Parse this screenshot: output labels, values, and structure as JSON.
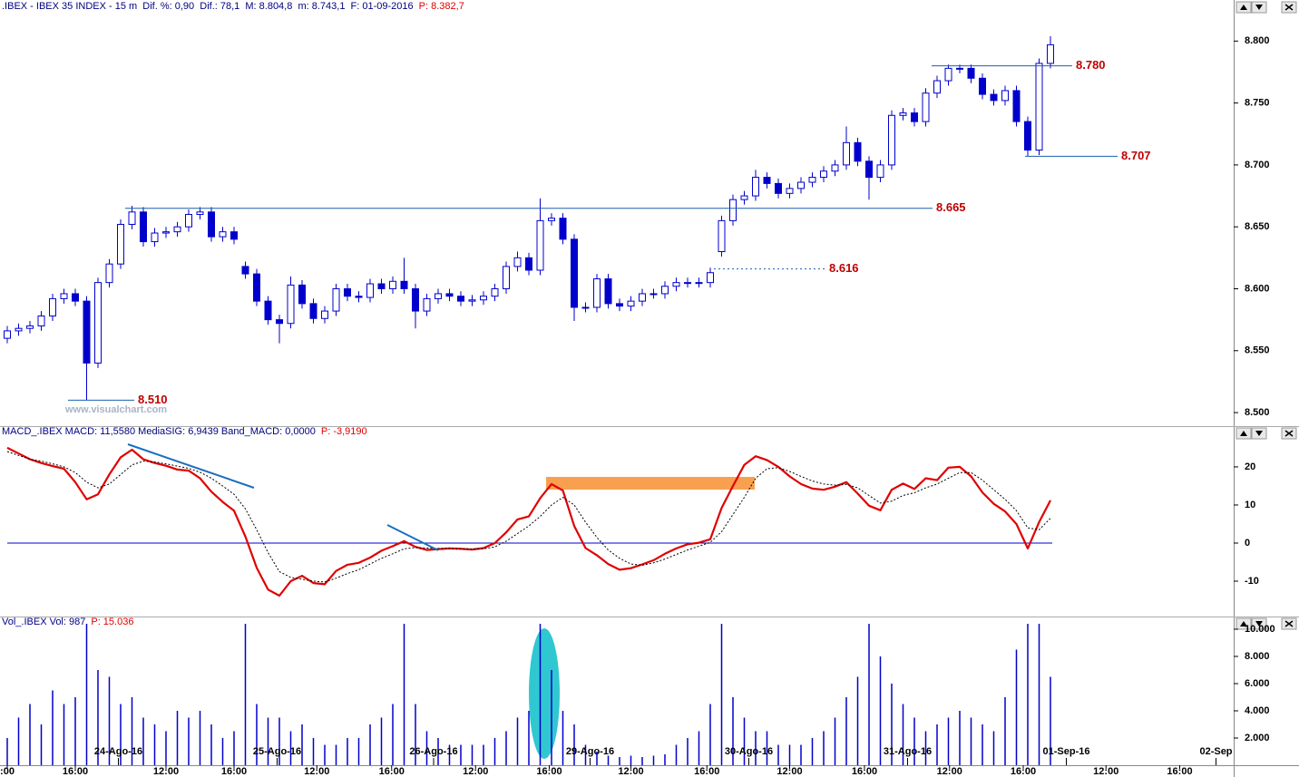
{
  "chart_data": [
    {
      "type": "candlestick",
      "header": ".IBEX - IBEX 35 INDEX - 15 m  Dif. %: 0,90  Dif.: 78,1  M: 8.804,8  m: 8.743,1  F: 01-09-2016",
      "header_value": "P: 8.382,7",
      "watermark": "www.visualchart.com",
      "up_color": "#ffffff",
      "down_color": "#0000cc",
      "edge_color": "#0000cc",
      "xlim": [
        -0.64,
        108.16
      ],
      "ylim": [
        8.492,
        8.82
      ],
      "yticks": [
        {
          "value": 8.5,
          "label": "8.500"
        },
        {
          "value": 8.55,
          "label": "8.550"
        },
        {
          "value": 8.6,
          "label": "8.600"
        },
        {
          "value": 8.65,
          "label": "8.650"
        },
        {
          "value": 8.7,
          "label": "8.700"
        },
        {
          "value": 8.75,
          "label": "8.750"
        },
        {
          "value": 8.8,
          "label": "8.800"
        }
      ],
      "levels": [
        {
          "value": 8.51,
          "label": "8.510"
        },
        {
          "value": 8.665,
          "label": "8.665"
        },
        {
          "value": 8.616,
          "label": "8.616",
          "style": "dotted"
        },
        {
          "value": 8.707,
          "label": "8.707"
        },
        {
          "value": 8.78,
          "label": "8.780"
        }
      ],
      "open": [
        8.56,
        8.566,
        8.568,
        8.57,
        8.578,
        8.592,
        8.596,
        8.59,
        8.54,
        8.605,
        8.62,
        8.652,
        8.662,
        8.638,
        8.645,
        8.646,
        8.65,
        8.66,
        8.662,
        8.642,
        8.646,
        8.618,
        8.612,
        8.59,
        8.575,
        8.572,
        8.603,
        8.588,
        8.576,
        8.582,
        8.6,
        8.594,
        8.593,
        8.604,
        8.6,
        8.606,
        8.6,
        8.582,
        8.592,
        8.596,
        8.594,
        8.59,
        8.591,
        8.594,
        8.6,
        8.618,
        8.625,
        8.615,
        8.655,
        8.657,
        8.64,
        8.585,
        8.585,
        8.608,
        8.588,
        8.586,
        8.59,
        8.596,
        8.596,
        8.602,
        8.605,
        8.605,
        8.605,
        8.63,
        8.655,
        8.672,
        8.675,
        8.69,
        8.685,
        8.677,
        8.681,
        8.686,
        8.69,
        8.695,
        8.7,
        8.718,
        8.703,
        8.69,
        8.7,
        8.74,
        8.742,
        8.735,
        8.758,
        8.768,
        8.778,
        8.778,
        8.77,
        8.757,
        8.752,
        8.76,
        8.735,
        8.712,
        8.782
      ],
      "high": [
        8.57,
        8.572,
        8.574,
        8.582,
        8.596,
        8.6,
        8.6,
        8.594,
        8.609,
        8.624,
        8.656,
        8.667,
        8.666,
        8.649,
        8.65,
        8.654,
        8.664,
        8.666,
        8.666,
        8.65,
        8.65,
        8.622,
        8.616,
        8.594,
        8.579,
        8.61,
        8.607,
        8.592,
        8.586,
        8.604,
        8.604,
        8.598,
        8.608,
        8.608,
        8.61,
        8.625,
        8.604,
        8.596,
        8.6,
        8.6,
        8.598,
        8.595,
        8.598,
        8.604,
        8.622,
        8.63,
        8.629,
        8.673,
        8.661,
        8.661,
        8.644,
        8.589,
        8.612,
        8.612,
        8.592,
        8.594,
        8.6,
        8.6,
        8.606,
        8.609,
        8.609,
        8.609,
        8.617,
        8.659,
        8.676,
        8.679,
        8.696,
        8.694,
        8.689,
        8.685,
        8.69,
        8.694,
        8.699,
        8.704,
        8.731,
        8.722,
        8.707,
        8.704,
        8.744,
        8.746,
        8.746,
        8.762,
        8.772,
        8.781,
        8.781,
        8.781,
        8.774,
        8.761,
        8.764,
        8.764,
        8.739,
        8.786,
        8.804
      ],
      "low": [
        8.556,
        8.562,
        8.564,
        8.566,
        8.574,
        8.588,
        8.586,
        8.51,
        8.536,
        8.601,
        8.616,
        8.648,
        8.634,
        8.634,
        8.641,
        8.642,
        8.646,
        8.656,
        8.638,
        8.638,
        8.636,
        8.608,
        8.586,
        8.571,
        8.556,
        8.568,
        8.584,
        8.572,
        8.572,
        8.578,
        8.59,
        8.589,
        8.589,
        8.596,
        8.596,
        8.596,
        8.568,
        8.578,
        8.588,
        8.59,
        8.586,
        8.586,
        8.587,
        8.59,
        8.596,
        8.614,
        8.611,
        8.611,
        8.651,
        8.636,
        8.574,
        8.581,
        8.581,
        8.584,
        8.582,
        8.582,
        8.586,
        8.592,
        8.592,
        8.598,
        8.601,
        8.601,
        8.601,
        8.626,
        8.651,
        8.668,
        8.671,
        8.681,
        8.673,
        8.673,
        8.677,
        8.682,
        8.686,
        8.691,
        8.696,
        8.699,
        8.672,
        8.686,
        8.696,
        8.736,
        8.731,
        8.731,
        8.754,
        8.764,
        8.774,
        8.766,
        8.753,
        8.748,
        8.748,
        8.731,
        8.707,
        8.708,
        8.778
      ],
      "close": [
        8.566,
        8.568,
        8.57,
        8.578,
        8.592,
        8.596,
        8.59,
        8.54,
        8.605,
        8.62,
        8.652,
        8.662,
        8.638,
        8.645,
        8.646,
        8.65,
        8.66,
        8.662,
        8.642,
        8.646,
        8.64,
        8.612,
        8.59,
        8.575,
        8.572,
        8.603,
        8.588,
        8.576,
        8.582,
        8.6,
        8.594,
        8.593,
        8.604,
        8.6,
        8.606,
        8.6,
        8.582,
        8.592,
        8.596,
        8.594,
        8.59,
        8.591,
        8.594,
        8.6,
        8.618,
        8.625,
        8.615,
        8.655,
        8.657,
        8.64,
        8.585,
        8.585,
        8.608,
        8.588,
        8.586,
        8.59,
        8.596,
        8.596,
        8.602,
        8.605,
        8.605,
        8.605,
        8.613,
        8.655,
        8.672,
        8.675,
        8.69,
        8.685,
        8.677,
        8.681,
        8.686,
        8.69,
        8.695,
        8.7,
        8.718,
        8.703,
        8.69,
        8.7,
        8.74,
        8.742,
        8.735,
        8.758,
        8.768,
        8.778,
        8.778,
        8.77,
        8.757,
        8.752,
        8.76,
        8.735,
        8.712,
        8.782,
        8.797
      ]
    },
    {
      "type": "line",
      "header": "MACD_.IBEX MACD: 11,5580 MediaSIG: 6,9439 Band_MACD: 0,0000",
      "header_value": "P: -3,9190",
      "xlim": [
        -0.64,
        108.16
      ],
      "ylim": [
        -18.8,
        27.6
      ],
      "yticks": [
        -10,
        0,
        10,
        20
      ],
      "hline": 0,
      "hline_color": "#0000cc",
      "series": [
        {
          "color": "#e00000",
          "values": [
            25,
            23.5,
            22,
            21,
            20.2,
            19.5,
            16,
            11.5,
            12.8,
            18,
            22.5,
            24.5,
            22,
            21,
            20.3,
            19.3,
            19,
            17,
            13.5,
            10.8,
            8.5,
            1.7,
            -6.5,
            -12.2,
            -13.8,
            -10,
            -8.6,
            -10.5,
            -10.8,
            -7.3,
            -5.7,
            -5.2,
            -3.8,
            -2,
            -0.8,
            0.5,
            -1,
            -1.8,
            -1.6,
            -1.4,
            -1.5,
            -1.7,
            -1.3,
            0,
            2.8,
            6.2,
            7,
            11.8,
            15.5,
            13.8,
            4.5,
            -1.3,
            -3.2,
            -5.5,
            -7,
            -6.6,
            -5.6,
            -4.5,
            -2.8,
            -1.4,
            -0.3,
            0.1,
            1,
            9.2,
            15,
            20.5,
            22.8,
            21.8,
            20,
            17.5,
            15.5,
            14.3,
            14,
            14.8,
            16,
            13,
            9.8,
            8.6,
            14,
            15.6,
            14.2,
            17,
            16.5,
            19.8,
            20,
            17.5,
            13.3,
            10.3,
            8.3,
            5,
            -1.4,
            5.5,
            11.2
          ]
        },
        {
          "color": "#000000",
          "style": "dotted",
          "values": [
            24,
            23,
            22,
            21.5,
            20.8,
            20,
            18.5,
            16,
            14.5,
            15.5,
            18,
            20.5,
            21.5,
            21.3,
            20.8,
            20.2,
            19.6,
            18.6,
            17,
            15,
            12.8,
            9,
            3.5,
            -2.5,
            -7.5,
            -9,
            -9.5,
            -10,
            -10.2,
            -9.2,
            -8,
            -7,
            -5.5,
            -4,
            -2.8,
            -1.5,
            -1.2,
            -1.3,
            -1.4,
            -1.4,
            -1.5,
            -1.6,
            -1.5,
            -1,
            0.5,
            2.5,
            4.5,
            7,
            10,
            12,
            10,
            5.5,
            1.5,
            -1.8,
            -4,
            -5.5,
            -5.8,
            -5.2,
            -4.2,
            -3,
            -1.8,
            -0.8,
            0.2,
            3,
            7.5,
            12,
            17,
            19.5,
            19.8,
            18.8,
            17.5,
            16.3,
            15.5,
            15.2,
            15.4,
            14.5,
            12.5,
            10.5,
            11,
            12.5,
            13.2,
            14.5,
            15.5,
            17,
            18.5,
            18.5,
            16.5,
            14,
            11.5,
            8.5,
            4,
            3.5,
            6.5
          ]
        }
      ]
    },
    {
      "type": "bar",
      "header": "Vol_.IBEX Vol: 987",
      "header_value": "P: 15.036",
      "color": "#0000cc",
      "xlim": [
        -0.64,
        108.16
      ],
      "ylim": [
        0,
        10400
      ],
      "yticks": [
        {
          "value": 2000,
          "label": "2.000"
        },
        {
          "value": 4000,
          "label": "4.000"
        },
        {
          "value": 6000,
          "label": "6.000"
        },
        {
          "value": 8000,
          "label": "8.000"
        },
        {
          "value": 10000,
          "label": "10.000"
        }
      ],
      "values": [
        2000,
        3500,
        4500,
        3000,
        5500,
        4500,
        5000,
        10400,
        7000,
        6500,
        4500,
        5000,
        3500,
        3000,
        2500,
        4000,
        3500,
        4000,
        3000,
        2000,
        2500,
        10400,
        4500,
        3500,
        3500,
        2500,
        3000,
        2000,
        1500,
        1500,
        2000,
        2000,
        3000,
        3500,
        4500,
        10400,
        4500,
        2500,
        2000,
        1500,
        1500,
        1500,
        1500,
        2000,
        2500,
        3500,
        4000,
        10400,
        7000,
        4000,
        3000,
        1500,
        1000,
        700,
        600,
        700,
        600,
        700,
        800,
        1500,
        2000,
        2500,
        4500,
        10400,
        5000,
        3500,
        2500,
        2500,
        1500,
        1500,
        1500,
        2000,
        2500,
        3500,
        5000,
        6500,
        10400,
        8000,
        6000,
        4500,
        3500,
        2500,
        3000,
        3500,
        4000,
        3500,
        3000,
        2500,
        5000,
        8500,
        10400,
        10400,
        6500
      ],
      "xticks": [
        {
          "value": 0,
          "label": ":00"
        },
        {
          "value": 6,
          "label": "16:00"
        },
        {
          "value": 14,
          "label": "12:00"
        },
        {
          "value": 20,
          "label": "16:00"
        },
        {
          "value": 27.3,
          "label": "12:00"
        },
        {
          "value": 33.9,
          "label": "16:00"
        },
        {
          "value": 41.3,
          "label": "12:00"
        },
        {
          "value": 47.8,
          "label": "16:00"
        },
        {
          "value": 55,
          "label": "12:00"
        },
        {
          "value": 61.7,
          "label": "16:00"
        },
        {
          "value": 69,
          "label": "12:00"
        },
        {
          "value": 75.6,
          "label": "16:00"
        },
        {
          "value": 83.1,
          "label": "12:00"
        },
        {
          "value": 89.6,
          "label": "16:00"
        },
        {
          "value": 96.9,
          "label": "12:00"
        },
        {
          "value": 103.4,
          "label": "16:00"
        }
      ],
      "date_ticks": [
        {
          "value": 9.8,
          "label": "24-Ago-16"
        },
        {
          "value": 23.8,
          "label": "25-Ago-16"
        },
        {
          "value": 37.6,
          "label": "26-Ago-16"
        },
        {
          "value": 51.4,
          "label": "29-Ago-16"
        },
        {
          "value": 65.4,
          "label": "30-Ago-16"
        },
        {
          "value": 79.4,
          "label": "31-Ago-16"
        },
        {
          "value": 93.4,
          "label": "01-Sep-16"
        },
        {
          "value": 106.6,
          "label": "02-Sep"
        }
      ]
    }
  ]
}
